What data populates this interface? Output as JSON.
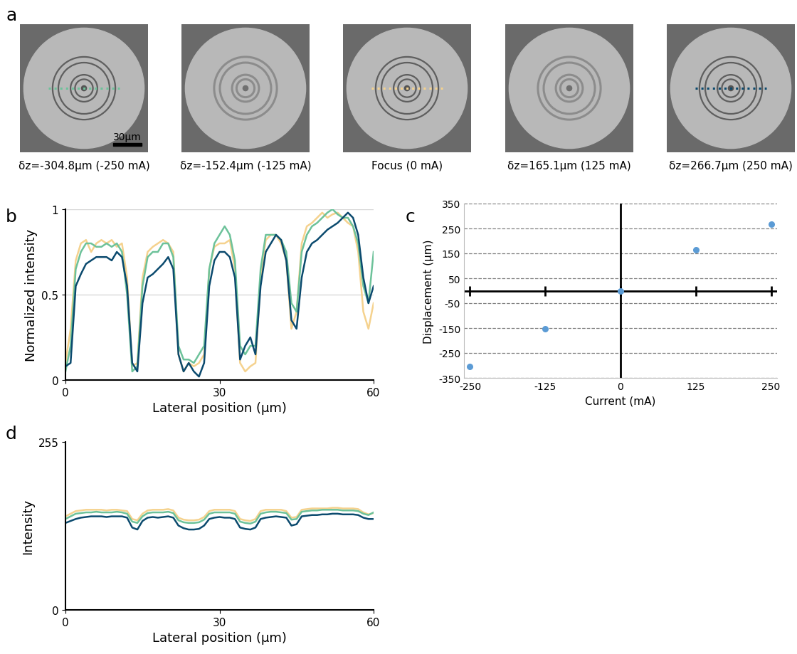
{
  "chart_data": [
    {
      "type": "image",
      "panel": "a",
      "scale_bar": "30μm",
      "images": [
        {
          "label": "δz=-304.8μm (-250 mA)",
          "color": "#6dc29a"
        },
        {
          "label": "δz=-152.4μm (-125 mA)"
        },
        {
          "label": "Focus (0 mA)",
          "color": "#f5d28e"
        },
        {
          "label": "δz=165.1μm (125 mA)"
        },
        {
          "label": "δz=266.7μm (250 mA)",
          "color": "#0b4a6e"
        }
      ]
    },
    {
      "type": "line",
      "panel": "b",
      "x_label": "Lateral position (μm)",
      "y_label": "Normalized intensity",
      "xlim": [
        0,
        60
      ],
      "xticks": [
        0,
        30,
        60
      ],
      "ylim": [
        0,
        1
      ],
      "yticks": [
        0,
        0.5,
        1
      ],
      "grid": true,
      "x": [
        0,
        1,
        2,
        3,
        4,
        5,
        6,
        7,
        8,
        9,
        10,
        11,
        12,
        13,
        14,
        15,
        16,
        17,
        18,
        19,
        20,
        21,
        22,
        23,
        24,
        25,
        26,
        27,
        28,
        29,
        30,
        31,
        32,
        33,
        34,
        35,
        36,
        37,
        38,
        39,
        40,
        41,
        42,
        43,
        44,
        45,
        46,
        47,
        48,
        49,
        50,
        51,
        52,
        53,
        54,
        55,
        56,
        57,
        58,
        59,
        60
      ],
      "series": [
        {
          "color": "#f5d28e",
          "values": [
            0.1,
            0.3,
            0.7,
            0.8,
            0.82,
            0.75,
            0.8,
            0.82,
            0.8,
            0.82,
            0.78,
            0.8,
            0.6,
            0.08,
            0.1,
            0.6,
            0.75,
            0.78,
            0.8,
            0.82,
            0.8,
            0.75,
            0.15,
            0.05,
            0.1,
            0.08,
            0.1,
            0.15,
            0.65,
            0.78,
            0.8,
            0.8,
            0.82,
            0.65,
            0.1,
            0.05,
            0.08,
            0.1,
            0.6,
            0.82,
            0.85,
            0.85,
            0.8,
            0.7,
            0.3,
            0.4,
            0.8,
            0.9,
            0.92,
            0.95,
            0.98,
            0.95,
            0.97,
            0.98,
            0.95,
            0.92,
            0.9,
            0.75,
            0.4,
            0.3,
            0.45
          ]
        },
        {
          "color": "#6dc29a",
          "values": [
            0.05,
            0.2,
            0.65,
            0.75,
            0.8,
            0.8,
            0.78,
            0.78,
            0.8,
            0.78,
            0.8,
            0.75,
            0.5,
            0.05,
            0.08,
            0.55,
            0.72,
            0.75,
            0.75,
            0.8,
            0.8,
            0.72,
            0.2,
            0.12,
            0.12,
            0.1,
            0.15,
            0.2,
            0.65,
            0.8,
            0.85,
            0.9,
            0.85,
            0.7,
            0.2,
            0.15,
            0.2,
            0.2,
            0.65,
            0.85,
            0.85,
            0.85,
            0.82,
            0.75,
            0.45,
            0.4,
            0.75,
            0.85,
            0.9,
            0.92,
            0.95,
            0.98,
            1.0,
            0.97,
            0.95,
            0.95,
            0.9,
            0.8,
            0.55,
            0.45,
            0.75
          ]
        },
        {
          "color": "#0b4a6e",
          "values": [
            0.08,
            0.1,
            0.55,
            0.62,
            0.68,
            0.7,
            0.72,
            0.72,
            0.72,
            0.7,
            0.75,
            0.72,
            0.55,
            0.1,
            0.05,
            0.45,
            0.6,
            0.62,
            0.65,
            0.68,
            0.72,
            0.65,
            0.15,
            0.05,
            0.1,
            0.05,
            0.02,
            0.1,
            0.55,
            0.7,
            0.75,
            0.75,
            0.72,
            0.6,
            0.12,
            0.2,
            0.25,
            0.15,
            0.55,
            0.75,
            0.8,
            0.85,
            0.82,
            0.7,
            0.35,
            0.3,
            0.6,
            0.75,
            0.8,
            0.82,
            0.85,
            0.88,
            0.9,
            0.92,
            0.95,
            0.98,
            0.95,
            0.85,
            0.6,
            0.45,
            0.55
          ]
        }
      ]
    },
    {
      "type": "scatter",
      "panel": "c",
      "x_label": "Current (mA)",
      "y_label": "Displacement (μm)",
      "xlim": [
        -260,
        260
      ],
      "xticks": [
        -250,
        -125,
        0,
        125,
        250
      ],
      "ylim": [
        -350,
        350
      ],
      "yticks": [
        -350,
        -250,
        -150,
        -50,
        50,
        150,
        250,
        350
      ],
      "grid": true,
      "color": "#5b9bd5",
      "x": [
        -250,
        -125,
        0,
        125,
        250
      ],
      "values": [
        -304.8,
        -152.4,
        0,
        165.1,
        266.7
      ]
    },
    {
      "type": "line",
      "panel": "d",
      "x_label": "Lateral position (μm)",
      "y_label": "Intensity",
      "xlim": [
        0,
        60
      ],
      "xticks": [
        0,
        30,
        60
      ],
      "ylim": [
        0,
        255
      ],
      "yticks": [
        0,
        255
      ],
      "grid": false,
      "x": [
        0,
        1,
        2,
        3,
        4,
        5,
        6,
        7,
        8,
        9,
        10,
        11,
        12,
        13,
        14,
        15,
        16,
        17,
        18,
        19,
        20,
        21,
        22,
        23,
        24,
        25,
        26,
        27,
        28,
        29,
        30,
        31,
        32,
        33,
        34,
        35,
        36,
        37,
        38,
        39,
        40,
        41,
        42,
        43,
        44,
        45,
        46,
        47,
        48,
        49,
        50,
        51,
        52,
        53,
        54,
        55,
        56,
        57,
        58,
        59,
        60
      ],
      "series": [
        {
          "color": "#f5d28e",
          "values": [
            142,
            146,
            150,
            151,
            152,
            152,
            152,
            152,
            151,
            152,
            152,
            151,
            150,
            138,
            136,
            146,
            151,
            152,
            152,
            152,
            153,
            151,
            140,
            137,
            136,
            136,
            137,
            141,
            150,
            152,
            152,
            152,
            152,
            150,
            138,
            136,
            135,
            138,
            150,
            152,
            152,
            152,
            152,
            150,
            140,
            141,
            152,
            153,
            154,
            154,
            154,
            154,
            155,
            155,
            154,
            154,
            154,
            153,
            148,
            145,
            147
          ]
        },
        {
          "color": "#6dc29a",
          "values": [
            138,
            142,
            146,
            147,
            148,
            148,
            149,
            148,
            148,
            148,
            149,
            148,
            146,
            134,
            132,
            142,
            147,
            148,
            148,
            148,
            149,
            147,
            136,
            133,
            132,
            132,
            133,
            137,
            146,
            148,
            148,
            148,
            148,
            146,
            134,
            132,
            131,
            134,
            146,
            148,
            149,
            149,
            148,
            147,
            137,
            138,
            149,
            150,
            151,
            151,
            152,
            152,
            152,
            152,
            151,
            151,
            151,
            150,
            146,
            144,
            148
          ]
        },
        {
          "color": "#0b4a6e",
          "values": [
            132,
            135,
            138,
            140,
            141,
            142,
            142,
            142,
            141,
            142,
            142,
            142,
            140,
            125,
            122,
            135,
            140,
            141,
            140,
            141,
            142,
            140,
            128,
            124,
            122,
            122,
            123,
            128,
            138,
            140,
            141,
            140,
            140,
            138,
            125,
            123,
            122,
            125,
            138,
            140,
            141,
            142,
            141,
            140,
            128,
            130,
            142,
            143,
            144,
            144,
            145,
            145,
            146,
            146,
            145,
            145,
            145,
            144,
            140,
            138,
            138
          ]
        }
      ]
    }
  ]
}
